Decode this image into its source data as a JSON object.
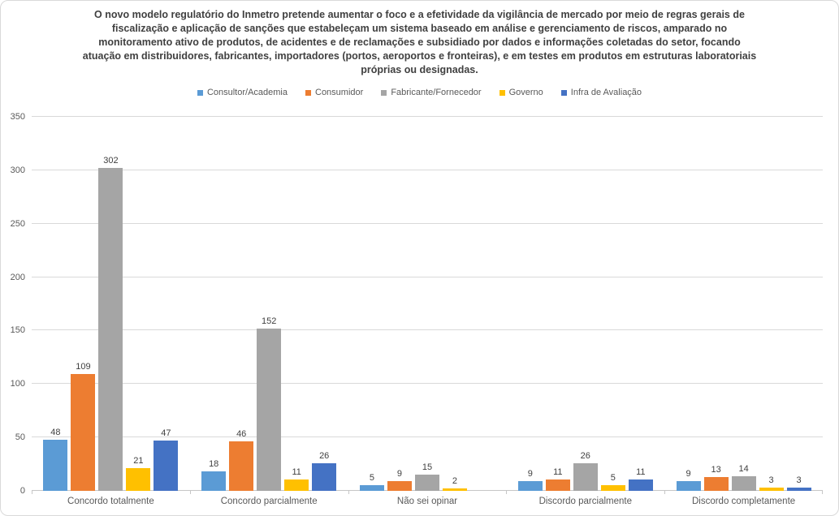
{
  "chart_data": {
    "type": "bar",
    "title": "O novo modelo regulatório do Inmetro pretende aumentar o foco e a efetividade da vigilância de mercado por meio de regras gerais de fiscalização e aplicação de sanções que estabeleçam um sistema baseado em análise e gerenciamento de riscos, amparado no monitoramento ativo de produtos, de acidentes e de reclamações e subsidiado por dados e informações coletadas do setor, focando atuação em distribuidores, fabricantes, importadores (portos, aeroportos e fronteiras), e em testes em produtos em estruturas laboratoriais próprias ou designadas.",
    "categories": [
      "Concordo totalmente",
      "Concordo parcialmente",
      "Não sei opinar",
      "Discordo parcialmente",
      "Discordo completamente"
    ],
    "series": [
      {
        "name": "Consultor/Academia",
        "color": "#5B9BD5",
        "values": [
          48,
          18,
          5,
          9,
          9
        ]
      },
      {
        "name": "Consumidor",
        "color": "#ED7D31",
        "values": [
          109,
          46,
          9,
          11,
          13
        ]
      },
      {
        "name": "Fabricante/Fornecedor",
        "color": "#A5A5A5",
        "values": [
          302,
          152,
          15,
          26,
          14
        ]
      },
      {
        "name": "Governo",
        "color": "#FFC000",
        "values": [
          21,
          11,
          2,
          5,
          3
        ]
      },
      {
        "name": "Infra de Avaliação",
        "color": "#4472C4",
        "values": [
          47,
          26,
          null,
          11,
          3
        ]
      }
    ],
    "ylim": [
      0,
      350
    ],
    "yticks": [
      0,
      50,
      100,
      150,
      200,
      250,
      300,
      350
    ],
    "grid": true,
    "legend_position": "top-center",
    "colors": {
      "grid": "#d9d9d9",
      "axis": "#c6c6c6",
      "axis_label": "#595959",
      "data_label": "#404040",
      "title": "#404040",
      "border": "#d9d9d9",
      "background": "#ffffff"
    }
  }
}
